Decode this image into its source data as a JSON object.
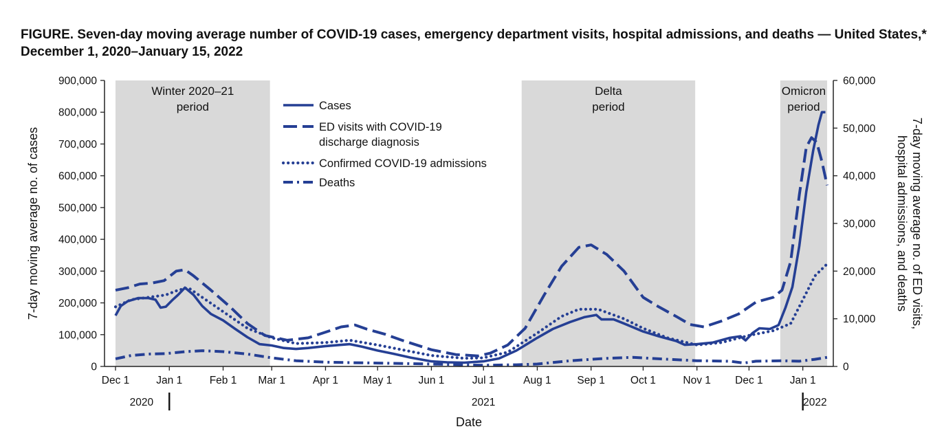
{
  "chart_data": {
    "type": "line",
    "title": "FIGURE. Seven-day moving average number of COVID-19 cases, emergency department visits, hospital admissions, and deaths — United States,* December 1, 2020–January 15, 2022",
    "xlabel": "Date",
    "ylabel_left": "7-day moving average no. of cases",
    "ylabel_right_line1": "7-day moving average no. of ED visits,",
    "ylabel_right_line2": "hospital admissions, and deaths",
    "x_range": [
      "2020-12-01",
      "2022-01-15"
    ],
    "ylim_left": [
      0,
      900000
    ],
    "ylim_right": [
      0,
      60000
    ],
    "x_ticks": [
      {
        "label": "Dec 1",
        "date": "2020-12-01"
      },
      {
        "label": "Jan 1",
        "date": "2021-01-01"
      },
      {
        "label": "Feb 1",
        "date": "2021-02-01"
      },
      {
        "label": "Mar 1",
        "date": "2021-03-01"
      },
      {
        "label": "Apr 1",
        "date": "2021-04-01"
      },
      {
        "label": "May 1",
        "date": "2021-05-01"
      },
      {
        "label": "Jun 1",
        "date": "2021-06-01"
      },
      {
        "label": "Jul 1",
        "date": "2021-07-01"
      },
      {
        "label": "Aug 1",
        "date": "2021-08-01"
      },
      {
        "label": "Sep 1",
        "date": "2021-09-01"
      },
      {
        "label": "Oct 1",
        "date": "2021-10-01"
      },
      {
        "label": "Nov 1",
        "date": "2021-11-01"
      },
      {
        "label": "Dec 1",
        "date": "2021-12-01"
      },
      {
        "label": "Jan 1",
        "date": "2022-01-01"
      }
    ],
    "y_ticks_left": [
      {
        "label": "0",
        "value": 0
      },
      {
        "label": "100,000",
        "value": 100000
      },
      {
        "label": "200,000",
        "value": 200000
      },
      {
        "label": "300,000",
        "value": 300000
      },
      {
        "label": "400,000",
        "value": 400000
      },
      {
        "label": "500,000",
        "value": 500000
      },
      {
        "label": "600,000",
        "value": 600000
      },
      {
        "label": "700,000",
        "value": 700000
      },
      {
        "label": "800,000",
        "value": 800000
      },
      {
        "label": "900,000",
        "value": 900000
      }
    ],
    "y_ticks_right": [
      {
        "label": "0",
        "value": 0
      },
      {
        "label": "10,000",
        "value": 10000
      },
      {
        "label": "20,000",
        "value": 20000
      },
      {
        "label": "30,000",
        "value": 30000
      },
      {
        "label": "40,000",
        "value": 40000
      },
      {
        "label": "50,000",
        "value": 50000
      },
      {
        "label": "60,000",
        "value": 60000
      }
    ],
    "year_labels": [
      {
        "label": "2020",
        "date": "2020-12-16"
      },
      {
        "label": "2021",
        "date": "2021-07-01"
      },
      {
        "label": "2022",
        "date": "2022-01-08"
      }
    ],
    "year_dividers": [
      "2021-01-01",
      "2022-01-01"
    ],
    "periods": [
      {
        "label_line1": "Winter 2020–21",
        "label_line2": "period",
        "start": "2020-12-01",
        "end": "2021-02-28"
      },
      {
        "label_line1": "Delta",
        "label_line2": "period",
        "start": "2021-07-23",
        "end": "2021-10-31"
      },
      {
        "label_line1": "Omicron",
        "label_line2": "period",
        "start": "2021-12-19",
        "end": "2022-01-15"
      }
    ],
    "series": [
      {
        "name": "Cases",
        "axis": "left",
        "style": "solid",
        "points": [
          [
            "2020-12-01",
            160000
          ],
          [
            "2020-12-04",
            190000
          ],
          [
            "2020-12-08",
            205000
          ],
          [
            "2020-12-14",
            215000
          ],
          [
            "2020-12-20",
            215000
          ],
          [
            "2020-12-24",
            210000
          ],
          [
            "2020-12-27",
            185000
          ],
          [
            "2020-12-30",
            188000
          ],
          [
            "2021-01-03",
            210000
          ],
          [
            "2021-01-06",
            225000
          ],
          [
            "2021-01-10",
            248000
          ],
          [
            "2021-01-15",
            225000
          ],
          [
            "2021-01-20",
            190000
          ],
          [
            "2021-01-25",
            165000
          ],
          [
            "2021-02-01",
            145000
          ],
          [
            "2021-02-08",
            118000
          ],
          [
            "2021-02-15",
            92000
          ],
          [
            "2021-02-22",
            70000
          ],
          [
            "2021-03-01",
            66000
          ],
          [
            "2021-03-08",
            58000
          ],
          [
            "2021-03-15",
            55000
          ],
          [
            "2021-03-22",
            58000
          ],
          [
            "2021-04-01",
            64000
          ],
          [
            "2021-04-10",
            68000
          ],
          [
            "2021-04-15",
            70000
          ],
          [
            "2021-04-22",
            62000
          ],
          [
            "2021-05-01",
            50000
          ],
          [
            "2021-05-10",
            40000
          ],
          [
            "2021-05-20",
            28000
          ],
          [
            "2021-06-01",
            16000
          ],
          [
            "2021-06-10",
            13000
          ],
          [
            "2021-06-20",
            12000
          ],
          [
            "2021-07-01",
            16000
          ],
          [
            "2021-07-10",
            25000
          ],
          [
            "2021-07-20",
            50000
          ],
          [
            "2021-08-01",
            90000
          ],
          [
            "2021-08-10",
            118000
          ],
          [
            "2021-08-20",
            140000
          ],
          [
            "2021-08-28",
            155000
          ],
          [
            "2021-09-04",
            162000
          ],
          [
            "2021-09-07",
            148000
          ],
          [
            "2021-09-14",
            148000
          ],
          [
            "2021-09-20",
            135000
          ],
          [
            "2021-10-01",
            110000
          ],
          [
            "2021-10-10",
            95000
          ],
          [
            "2021-10-20",
            80000
          ],
          [
            "2021-10-25",
            68000
          ],
          [
            "2021-11-01",
            70000
          ],
          [
            "2021-11-10",
            75000
          ],
          [
            "2021-11-20",
            90000
          ],
          [
            "2021-11-26",
            95000
          ],
          [
            "2021-11-29",
            82000
          ],
          [
            "2021-12-03",
            105000
          ],
          [
            "2021-12-07",
            120000
          ],
          [
            "2021-12-13",
            118000
          ],
          [
            "2021-12-18",
            130000
          ],
          [
            "2021-12-22",
            185000
          ],
          [
            "2021-12-26",
            250000
          ],
          [
            "2021-12-30",
            380000
          ],
          [
            "2022-01-03",
            550000
          ],
          [
            "2022-01-07",
            680000
          ],
          [
            "2022-01-10",
            760000
          ],
          [
            "2022-01-12",
            800000
          ],
          [
            "2022-01-14",
            800000
          ]
        ]
      },
      {
        "name": "ED visits with COVID-19",
        "name_line2": "discharge diagnosis",
        "axis": "right",
        "style": "dash",
        "points": [
          [
            "2020-12-01",
            16000
          ],
          [
            "2020-12-08",
            16500
          ],
          [
            "2020-12-15",
            17300
          ],
          [
            "2020-12-22",
            17500
          ],
          [
            "2020-12-29",
            18000
          ],
          [
            "2021-01-05",
            20000
          ],
          [
            "2021-01-10",
            20300
          ],
          [
            "2021-01-15",
            19000
          ],
          [
            "2021-01-25",
            16000
          ],
          [
            "2021-02-05",
            12500
          ],
          [
            "2021-02-15",
            9000
          ],
          [
            "2021-02-25",
            6500
          ],
          [
            "2021-03-10",
            5500
          ],
          [
            "2021-03-22",
            6000
          ],
          [
            "2021-04-01",
            7200
          ],
          [
            "2021-04-10",
            8300
          ],
          [
            "2021-04-18",
            8700
          ],
          [
            "2021-04-25",
            7800
          ],
          [
            "2021-05-05",
            6800
          ],
          [
            "2021-05-15",
            5500
          ],
          [
            "2021-06-01",
            3500
          ],
          [
            "2021-06-15",
            2500
          ],
          [
            "2021-06-28",
            2200
          ],
          [
            "2021-07-05",
            2800
          ],
          [
            "2021-07-15",
            4500
          ],
          [
            "2021-07-25",
            8000
          ],
          [
            "2021-08-05",
            15000
          ],
          [
            "2021-08-15",
            21000
          ],
          [
            "2021-08-25",
            25000
          ],
          [
            "2021-09-01",
            25500
          ],
          [
            "2021-09-10",
            23500
          ],
          [
            "2021-09-20",
            20000
          ],
          [
            "2021-10-01",
            14500
          ],
          [
            "2021-10-10",
            12500
          ],
          [
            "2021-10-20",
            10500
          ],
          [
            "2021-10-28",
            8800
          ],
          [
            "2021-11-05",
            8300
          ],
          [
            "2021-11-15",
            9500
          ],
          [
            "2021-11-25",
            11000
          ],
          [
            "2021-12-05",
            13500
          ],
          [
            "2021-12-15",
            14500
          ],
          [
            "2021-12-20",
            16000
          ],
          [
            "2021-12-25",
            22000
          ],
          [
            "2021-12-30",
            36000
          ],
          [
            "2022-01-03",
            46000
          ],
          [
            "2022-01-06",
            48000
          ],
          [
            "2022-01-09",
            47000
          ],
          [
            "2022-01-12",
            43000
          ],
          [
            "2022-01-15",
            38000
          ]
        ]
      },
      {
        "name": "Confirmed COVID-19 admissions",
        "axis": "right",
        "style": "dot",
        "points": [
          [
            "2020-12-01",
            12500
          ],
          [
            "2020-12-10",
            14000
          ],
          [
            "2020-12-20",
            14500
          ],
          [
            "2020-12-30",
            15000
          ],
          [
            "2021-01-06",
            16000
          ],
          [
            "2021-01-12",
            16500
          ],
          [
            "2021-01-20",
            14500
          ],
          [
            "2021-02-01",
            11500
          ],
          [
            "2021-02-15",
            8000
          ],
          [
            "2021-03-01",
            6000
          ],
          [
            "2021-03-15",
            4800
          ],
          [
            "2021-04-01",
            5000
          ],
          [
            "2021-04-15",
            5500
          ],
          [
            "2021-05-01",
            4500
          ],
          [
            "2021-05-15",
            3500
          ],
          [
            "2021-06-01",
            2300
          ],
          [
            "2021-06-20",
            1700
          ],
          [
            "2021-07-01",
            1800
          ],
          [
            "2021-07-15",
            3000
          ],
          [
            "2021-08-01",
            7000
          ],
          [
            "2021-08-15",
            10500
          ],
          [
            "2021-08-25",
            12000
          ],
          [
            "2021-09-05",
            12000
          ],
          [
            "2021-09-20",
            10000
          ],
          [
            "2021-10-01",
            8000
          ],
          [
            "2021-10-15",
            6000
          ],
          [
            "2021-11-01",
            4500
          ],
          [
            "2021-11-15",
            5000
          ],
          [
            "2021-12-01",
            6500
          ],
          [
            "2021-12-15",
            7500
          ],
          [
            "2021-12-25",
            9000
          ],
          [
            "2022-01-01",
            14000
          ],
          [
            "2022-01-08",
            19000
          ],
          [
            "2022-01-15",
            21500
          ]
        ]
      },
      {
        "name": "Deaths",
        "axis": "right",
        "style": "dashdot",
        "points": [
          [
            "2020-12-01",
            1600
          ],
          [
            "2020-12-10",
            2300
          ],
          [
            "2020-12-20",
            2600
          ],
          [
            "2020-12-30",
            2700
          ],
          [
            "2021-01-10",
            3100
          ],
          [
            "2021-01-20",
            3300
          ],
          [
            "2021-02-01",
            3100
          ],
          [
            "2021-02-15",
            2600
          ],
          [
            "2021-03-01",
            1800
          ],
          [
            "2021-03-15",
            1200
          ],
          [
            "2021-04-01",
            900
          ],
          [
            "2021-04-15",
            800
          ],
          [
            "2021-05-01",
            700
          ],
          [
            "2021-06-01",
            500
          ],
          [
            "2021-07-01",
            250
          ],
          [
            "2021-07-20",
            350
          ],
          [
            "2021-08-01",
            500
          ],
          [
            "2021-08-20",
            1200
          ],
          [
            "2021-09-10",
            1700
          ],
          [
            "2021-09-25",
            1900
          ],
          [
            "2021-10-10",
            1600
          ],
          [
            "2021-11-01",
            1200
          ],
          [
            "2021-11-20",
            1100
          ],
          [
            "2021-11-28",
            700
          ],
          [
            "2021-12-05",
            1100
          ],
          [
            "2021-12-20",
            1200
          ],
          [
            "2021-12-30",
            1100
          ],
          [
            "2022-01-08",
            1500
          ],
          [
            "2022-01-15",
            1900
          ]
        ]
      }
    ],
    "legend_position": "upper-left-center",
    "grid": false,
    "colors": {
      "line": "#253f94",
      "period_shading": "#d9d9d9",
      "axis": "#222222",
      "text": "#111111"
    }
  }
}
